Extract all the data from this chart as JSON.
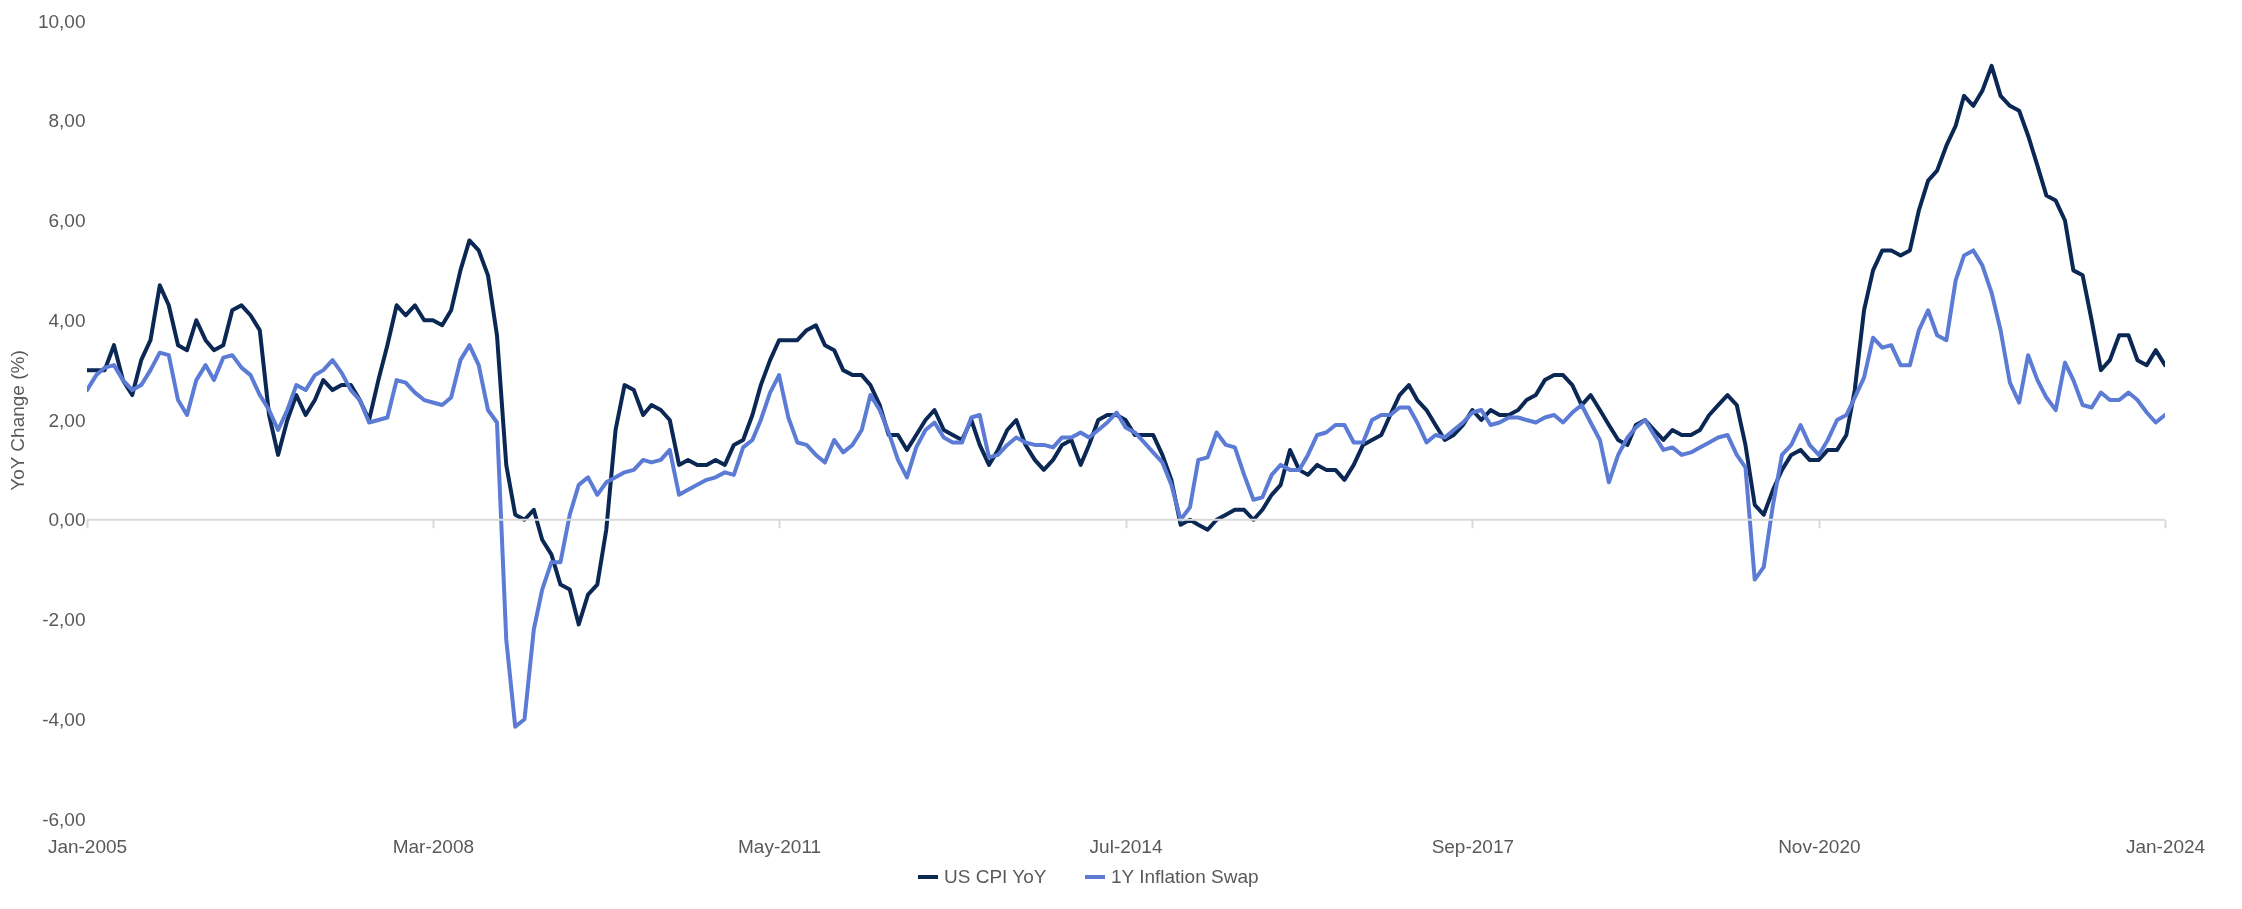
{
  "chart_data": {
    "type": "line",
    "ylabel": "YoY Change (%)",
    "legend": "bottom",
    "grid": false,
    "marker": "none",
    "line_style": "solid",
    "x": [
      "2005-01",
      "2005-02",
      "2005-03",
      "2005-04",
      "2005-05",
      "2005-06",
      "2005-07",
      "2005-08",
      "2005-09",
      "2005-10",
      "2005-11",
      "2005-12",
      "2006-01",
      "2006-02",
      "2006-03",
      "2006-04",
      "2006-05",
      "2006-06",
      "2006-07",
      "2006-08",
      "2006-09",
      "2006-10",
      "2006-11",
      "2006-12",
      "2007-01",
      "2007-02",
      "2007-03",
      "2007-04",
      "2007-05",
      "2007-06",
      "2007-07",
      "2007-08",
      "2007-09",
      "2007-10",
      "2007-11",
      "2007-12",
      "2008-01",
      "2008-02",
      "2008-03",
      "2008-04",
      "2008-05",
      "2008-06",
      "2008-07",
      "2008-08",
      "2008-09",
      "2008-10",
      "2008-11",
      "2008-12",
      "2009-01",
      "2009-02",
      "2009-03",
      "2009-04",
      "2009-05",
      "2009-06",
      "2009-07",
      "2009-08",
      "2009-09",
      "2009-10",
      "2009-11",
      "2009-12",
      "2010-01",
      "2010-02",
      "2010-03",
      "2010-04",
      "2010-05",
      "2010-06",
      "2010-07",
      "2010-08",
      "2010-09",
      "2010-10",
      "2010-11",
      "2010-12",
      "2011-01",
      "2011-02",
      "2011-03",
      "2011-04",
      "2011-05",
      "2011-06",
      "2011-07",
      "2011-08",
      "2011-09",
      "2011-10",
      "2011-11",
      "2011-12",
      "2012-01",
      "2012-02",
      "2012-03",
      "2012-04",
      "2012-05",
      "2012-06",
      "2012-07",
      "2012-08",
      "2012-09",
      "2012-10",
      "2012-11",
      "2012-12",
      "2013-01",
      "2013-02",
      "2013-03",
      "2013-04",
      "2013-05",
      "2013-06",
      "2013-07",
      "2013-08",
      "2013-09",
      "2013-10",
      "2013-11",
      "2013-12",
      "2014-01",
      "2014-02",
      "2014-03",
      "2014-04",
      "2014-05",
      "2014-06",
      "2014-07",
      "2014-08",
      "2014-09",
      "2014-10",
      "2014-11",
      "2014-12",
      "2015-01",
      "2015-02",
      "2015-03",
      "2015-04",
      "2015-05",
      "2015-06",
      "2015-07",
      "2015-08",
      "2015-09",
      "2015-10",
      "2015-11",
      "2015-12",
      "2016-01",
      "2016-02",
      "2016-03",
      "2016-04",
      "2016-05",
      "2016-06",
      "2016-07",
      "2016-08",
      "2016-09",
      "2016-10",
      "2016-11",
      "2016-12",
      "2017-01",
      "2017-02",
      "2017-03",
      "2017-04",
      "2017-05",
      "2017-06",
      "2017-07",
      "2017-08",
      "2017-09",
      "2017-10",
      "2017-11",
      "2017-12",
      "2018-01",
      "2018-02",
      "2018-03",
      "2018-04",
      "2018-05",
      "2018-06",
      "2018-07",
      "2018-08",
      "2018-09",
      "2018-10",
      "2018-11",
      "2018-12",
      "2019-01",
      "2019-02",
      "2019-03",
      "2019-04",
      "2019-05",
      "2019-06",
      "2019-07",
      "2019-08",
      "2019-09",
      "2019-10",
      "2019-11",
      "2019-12",
      "2020-01",
      "2020-02",
      "2020-03",
      "2020-04",
      "2020-05",
      "2020-06",
      "2020-07",
      "2020-08",
      "2020-09",
      "2020-10",
      "2020-11",
      "2020-12",
      "2021-01",
      "2021-02",
      "2021-03",
      "2021-04",
      "2021-05",
      "2021-06",
      "2021-07",
      "2021-08",
      "2021-09",
      "2021-10",
      "2021-11",
      "2021-12",
      "2022-01",
      "2022-02",
      "2022-03",
      "2022-04",
      "2022-05",
      "2022-06",
      "2022-07",
      "2022-08",
      "2022-09",
      "2022-10",
      "2022-11",
      "2022-12",
      "2023-01",
      "2023-02",
      "2023-03",
      "2023-04",
      "2023-05",
      "2023-06",
      "2023-07",
      "2023-08",
      "2023-09",
      "2023-10",
      "2023-11",
      "2023-12",
      "2024-01"
    ],
    "series": [
      {
        "name": "US CPI YoY",
        "color": "#0b2855",
        "values": [
          3.0,
          3.0,
          3.0,
          3.5,
          2.8,
          2.5,
          3.2,
          3.6,
          4.7,
          4.3,
          3.5,
          3.4,
          4.0,
          3.6,
          3.4,
          3.5,
          4.2,
          4.3,
          4.1,
          3.8,
          2.1,
          1.3,
          2.0,
          2.5,
          2.1,
          2.4,
          2.8,
          2.6,
          2.7,
          2.7,
          2.4,
          2.0,
          2.8,
          3.5,
          4.3,
          4.1,
          4.3,
          4.0,
          4.0,
          3.9,
          4.2,
          5.0,
          5.6,
          5.4,
          4.9,
          3.7,
          1.1,
          0.1,
          0.0,
          0.2,
          -0.4,
          -0.7,
          -1.3,
          -1.4,
          -2.1,
          -1.5,
          -1.3,
          -0.2,
          1.8,
          2.7,
          2.6,
          2.1,
          2.3,
          2.2,
          2.0,
          1.1,
          1.2,
          1.1,
          1.1,
          1.2,
          1.1,
          1.5,
          1.6,
          2.1,
          2.7,
          3.2,
          3.6,
          3.6,
          3.6,
          3.8,
          3.9,
          3.5,
          3.4,
          3.0,
          2.9,
          2.9,
          2.7,
          2.3,
          1.7,
          1.7,
          1.4,
          1.7,
          2.0,
          2.2,
          1.8,
          1.7,
          1.6,
          2.0,
          1.5,
          1.1,
          1.4,
          1.8,
          2.0,
          1.5,
          1.2,
          1.0,
          1.2,
          1.5,
          1.6,
          1.1,
          1.5,
          2.0,
          2.1,
          2.1,
          2.0,
          1.7,
          1.7,
          1.7,
          1.3,
          0.8,
          -0.1,
          0.0,
          -0.1,
          -0.2,
          0.0,
          0.1,
          0.2,
          0.2,
          0.0,
          0.2,
          0.5,
          0.7,
          1.4,
          1.0,
          0.9,
          1.1,
          1.0,
          1.0,
          0.8,
          1.1,
          1.5,
          1.6,
          1.7,
          2.1,
          2.5,
          2.7,
          2.4,
          2.2,
          1.9,
          1.6,
          1.7,
          1.9,
          2.2,
          2.0,
          2.2,
          2.1,
          2.1,
          2.2,
          2.4,
          2.5,
          2.8,
          2.9,
          2.9,
          2.7,
          2.3,
          2.5,
          2.2,
          1.9,
          1.6,
          1.5,
          1.9,
          2.0,
          1.8,
          1.6,
          1.8,
          1.7,
          1.7,
          1.8,
          2.1,
          2.3,
          2.5,
          2.3,
          1.5,
          0.3,
          0.1,
          0.6,
          1.0,
          1.3,
          1.4,
          1.2,
          1.2,
          1.4,
          1.4,
          1.7,
          2.6,
          4.2,
          5.0,
          5.4,
          5.4,
          5.3,
          5.4,
          6.2,
          6.8,
          7.0,
          7.5,
          7.9,
          8.5,
          8.3,
          8.6,
          9.1,
          8.5,
          8.3,
          8.2,
          7.7,
          7.1,
          6.5,
          6.4,
          6.0,
          5.0,
          4.9,
          4.0,
          3.0,
          3.2,
          3.7,
          3.7,
          3.2,
          3.1,
          3.4,
          3.1
        ]
      },
      {
        "name": "1Y Inflation Swap",
        "color": "#5b7bd5",
        "values": [
          2.6,
          2.9,
          3.05,
          3.1,
          2.8,
          2.6,
          2.7,
          3.0,
          3.35,
          3.3,
          2.4,
          2.1,
          2.8,
          3.1,
          2.8,
          3.25,
          3.3,
          3.05,
          2.9,
          2.5,
          2.2,
          1.8,
          2.2,
          2.7,
          2.6,
          2.9,
          3.0,
          3.2,
          2.95,
          2.6,
          2.4,
          1.95,
          2.0,
          2.05,
          2.8,
          2.75,
          2.55,
          2.4,
          2.35,
          2.3,
          2.45,
          3.2,
          3.5,
          3.1,
          2.2,
          1.95,
          -2.4,
          -4.15,
          -4.0,
          -2.2,
          -1.4,
          -0.85,
          -0.85,
          0.1,
          0.7,
          0.85,
          0.5,
          0.75,
          0.85,
          0.95,
          1.0,
          1.2,
          1.15,
          1.2,
          1.4,
          0.5,
          0.6,
          0.7,
          0.8,
          0.85,
          0.95,
          0.9,
          1.45,
          1.6,
          2.0,
          2.55,
          2.9,
          2.05,
          1.55,
          1.5,
          1.3,
          1.15,
          1.6,
          1.35,
          1.5,
          1.8,
          2.5,
          2.2,
          1.75,
          1.2,
          0.85,
          1.45,
          1.8,
          1.95,
          1.65,
          1.55,
          1.55,
          2.05,
          2.1,
          1.25,
          1.3,
          1.5,
          1.65,
          1.55,
          1.5,
          1.5,
          1.45,
          1.65,
          1.65,
          1.75,
          1.65,
          1.8,
          1.95,
          2.15,
          1.85,
          1.75,
          1.55,
          1.35,
          1.15,
          0.7,
          0.0,
          0.25,
          1.2,
          1.25,
          1.75,
          1.5,
          1.45,
          0.9,
          0.4,
          0.45,
          0.9,
          1.1,
          1.0,
          1.0,
          1.3,
          1.7,
          1.75,
          1.9,
          1.9,
          1.55,
          1.55,
          2.0,
          2.1,
          2.1,
          2.25,
          2.25,
          1.95,
          1.55,
          1.7,
          1.65,
          1.8,
          1.95,
          2.15,
          2.2,
          1.9,
          1.95,
          2.05,
          2.05,
          2.0,
          1.95,
          2.05,
          2.1,
          1.95,
          2.15,
          2.3,
          1.95,
          1.6,
          0.75,
          1.3,
          1.65,
          1.85,
          2.0,
          1.7,
          1.4,
          1.45,
          1.3,
          1.35,
          1.45,
          1.55,
          1.65,
          1.7,
          1.3,
          1.05,
          -1.2,
          -0.95,
          0.3,
          1.3,
          1.5,
          1.9,
          1.5,
          1.3,
          1.6,
          2.0,
          2.1,
          2.45,
          2.85,
          3.65,
          3.45,
          3.5,
          3.1,
          3.1,
          3.8,
          4.2,
          3.7,
          3.6,
          4.8,
          5.3,
          5.4,
          5.1,
          4.55,
          3.8,
          2.75,
          2.35,
          3.3,
          2.8,
          2.45,
          2.2,
          3.15,
          2.8,
          2.3,
          2.25,
          2.55,
          2.4,
          2.4,
          2.55,
          2.4,
          2.15,
          1.95,
          2.1
        ]
      }
    ],
    "xlim": [
      "2005-01",
      "2024-01"
    ],
    "xticks": [
      {
        "value": "2005-01",
        "label": "Jan-2005"
      },
      {
        "value": "2008-03",
        "label": "Mar-2008"
      },
      {
        "value": "2011-05",
        "label": "May-2011"
      },
      {
        "value": "2014-07",
        "label": "Jul-2014"
      },
      {
        "value": "2017-09",
        "label": "Sep-2017"
      },
      {
        "value": "2020-11",
        "label": "Nov-2020"
      },
      {
        "value": "2024-01",
        "label": "Jan-2024"
      }
    ],
    "ref_lines": [
      {
        "axis": "y",
        "value": 0,
        "color": "#d9d9d9"
      }
    ],
    "ylim": [
      -6,
      10
    ],
    "yticks": [
      {
        "value": -6,
        "label": "-6,00"
      },
      {
        "value": -4,
        "label": "-4,00"
      },
      {
        "value": -2,
        "label": "-2,00"
      },
      {
        "value": 0,
        "label": "0,00"
      },
      {
        "value": 2,
        "label": "2,00"
      },
      {
        "value": 4,
        "label": "4,00"
      },
      {
        "value": 6,
        "label": "6,00"
      },
      {
        "value": 8,
        "label": "8,00"
      },
      {
        "value": 10,
        "label": "10,00"
      }
    ]
  }
}
